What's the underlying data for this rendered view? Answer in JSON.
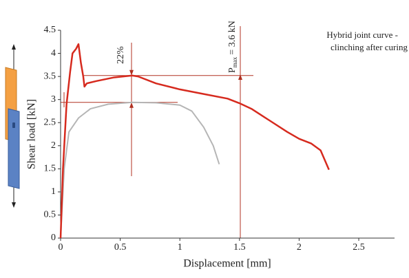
{
  "chart_data": {
    "type": "line",
    "x_label": "Displacement [mm]",
    "y_label": "Shear load [kN]",
    "annotation": [
      "Hybrid joint curve -",
      "clinching after curing"
    ],
    "percent_label": "22%",
    "pmax_label": {
      "symbol": "P",
      "subscript": "max",
      "text": "= 3.6 kN"
    },
    "xlim": [
      0,
      2.8
    ],
    "ylim": [
      0,
      4.5
    ],
    "xticks": [
      0,
      0.5,
      1,
      1.5,
      2,
      2.5
    ],
    "yticks": [
      0,
      0.5,
      1,
      1.5,
      2,
      2.5,
      3,
      3.5,
      4,
      4.5
    ],
    "series": [
      {
        "color": "#d62a1e",
        "x": [
          0,
          0.02,
          0.05,
          0.08,
          0.1,
          0.13,
          0.15,
          0.17,
          0.19,
          0.2,
          0.22,
          0.3,
          0.45,
          0.6,
          0.65,
          0.8,
          1.0,
          1.2,
          1.4,
          1.5,
          1.6,
          1.75,
          1.9,
          2.0,
          2.1,
          2.18,
          2.25
        ],
        "y": [
          0,
          1.5,
          2.9,
          3.6,
          4.0,
          4.1,
          4.2,
          3.8,
          3.5,
          3.28,
          3.35,
          3.4,
          3.48,
          3.52,
          3.5,
          3.35,
          3.22,
          3.12,
          3.02,
          2.92,
          2.8,
          2.55,
          2.3,
          2.15,
          2.05,
          1.9,
          1.48
        ]
      },
      {
        "color": "#b5b5b5",
        "x": [
          0,
          0.03,
          0.07,
          0.15,
          0.25,
          0.4,
          0.6,
          0.8,
          1.0,
          1.1,
          1.2,
          1.28,
          1.33
        ],
        "y": [
          0,
          1.5,
          2.3,
          2.6,
          2.8,
          2.9,
          2.94,
          2.93,
          2.88,
          2.75,
          2.4,
          2.0,
          1.6
        ]
      }
    ]
  }
}
